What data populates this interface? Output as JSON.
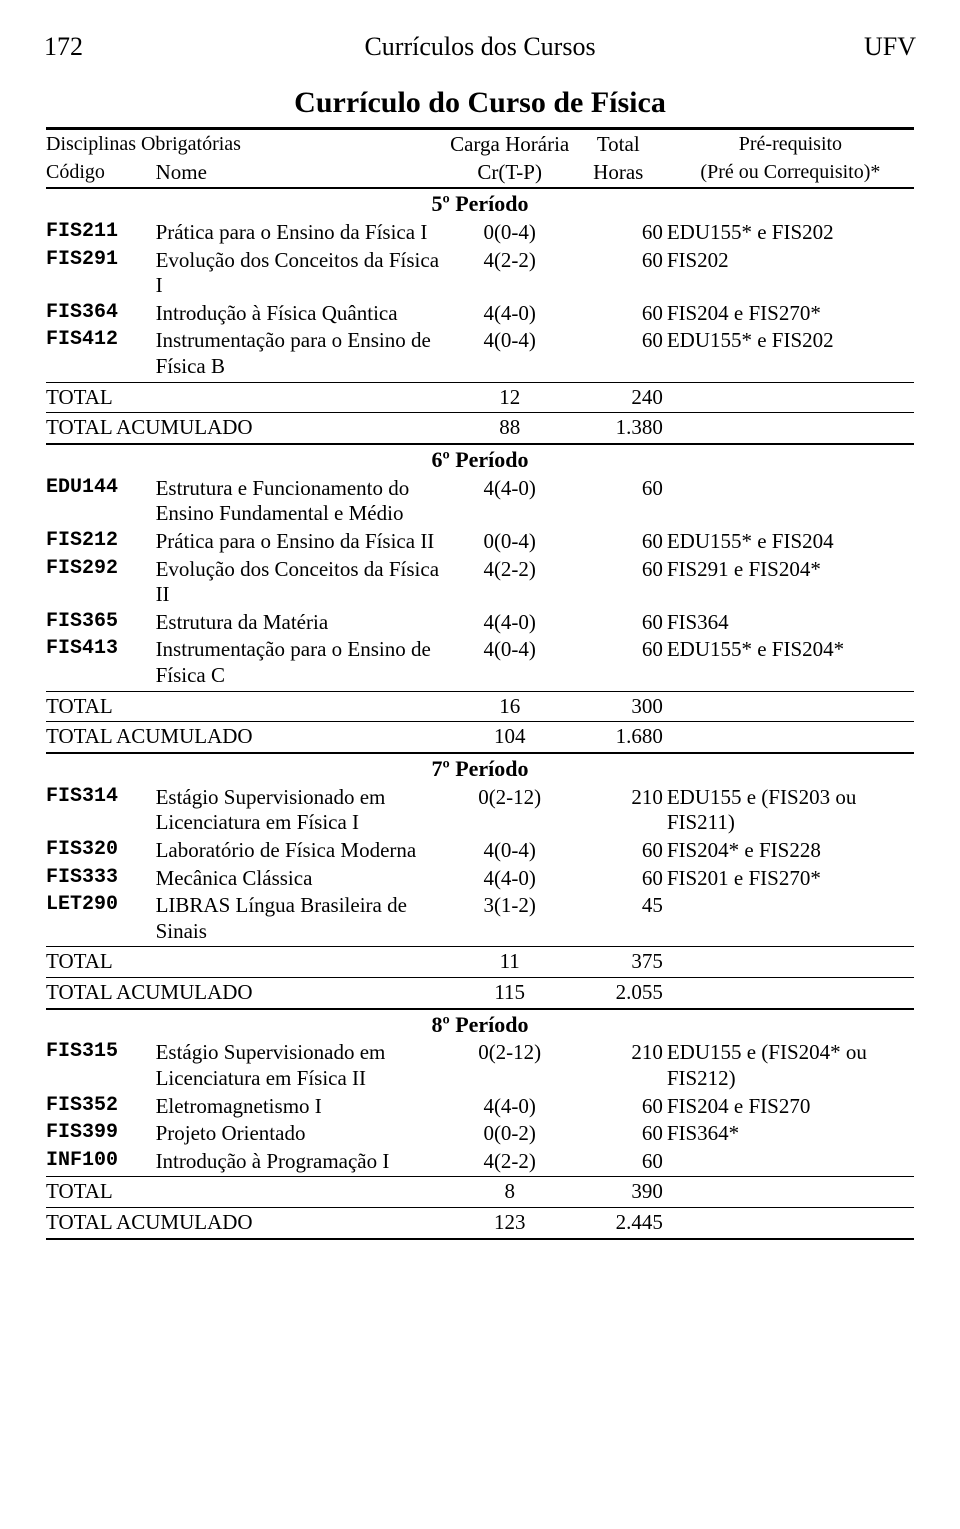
{
  "header": {
    "page_number": "172",
    "center_title": "Currículos dos Cursos",
    "institution": "UFV"
  },
  "title": "Currículo do Curso de Física",
  "table_header": {
    "row1": {
      "disciplinas": "Disciplinas Obrigatórias",
      "carga": "Carga Horária",
      "total": "Total",
      "prereq": "Pré-requisito"
    },
    "row2": {
      "codigo": "Código",
      "nome": "Nome",
      "carga": "Cr(T-P)",
      "horas": "Horas",
      "prereq": "(Pré ou Correquisito)*"
    }
  },
  "periods": [
    {
      "label": "5º Período",
      "rows": [
        {
          "code": "FIS211",
          "nome": "Prática para o Ensino da Física I",
          "carga": "0(0-4)",
          "horas": "60",
          "prereq": "EDU155* e FIS202"
        },
        {
          "code": "FIS291",
          "nome": "Evolução dos Conceitos da Física I",
          "carga": "4(2-2)",
          "horas": "60",
          "prereq": "FIS202"
        },
        {
          "code": "FIS364",
          "nome": "Introdução à Física Quântica",
          "carga": "4(4-0)",
          "horas": "60",
          "prereq": "FIS204 e FIS270*"
        },
        {
          "code": "FIS412",
          "nome": "Instrumentação para o Ensino de Física B",
          "carga": "4(0-4)",
          "horas": "60",
          "prereq": "EDU155* e FIS202"
        }
      ],
      "total": {
        "label": "TOTAL",
        "carga": "12",
        "horas": "240"
      },
      "acumulado": {
        "label": "TOTAL ACUMULADO",
        "carga": "88",
        "horas": "1.380"
      }
    },
    {
      "label": "6º Período",
      "rows": [
        {
          "code": "EDU144",
          "nome": "Estrutura e Funcionamento do Ensino Fundamental e Médio",
          "carga": "4(4-0)",
          "horas": "60",
          "prereq": ""
        },
        {
          "code": "FIS212",
          "nome": "Prática para o Ensino da Física II",
          "carga": "0(0-4)",
          "horas": "60",
          "prereq": "EDU155* e FIS204"
        },
        {
          "code": "FIS292",
          "nome": "Evolução dos Conceitos da Física II",
          "carga": "4(2-2)",
          "horas": "60",
          "prereq": "FIS291 e FIS204*"
        },
        {
          "code": "FIS365",
          "nome": "Estrutura da Matéria",
          "carga": "4(4-0)",
          "horas": "60",
          "prereq": "FIS364"
        },
        {
          "code": "FIS413",
          "nome": "Instrumentação para o Ensino de Física C",
          "carga": "4(0-4)",
          "horas": "60",
          "prereq": "EDU155* e FIS204*"
        }
      ],
      "total": {
        "label": "TOTAL",
        "carga": "16",
        "horas": "300"
      },
      "acumulado": {
        "label": "TOTAL ACUMULADO",
        "carga": "104",
        "horas": "1.680"
      }
    },
    {
      "label": "7º Período",
      "rows": [
        {
          "code": "FIS314",
          "nome": "Estágio Supervisionado em Licenciatura em Física I",
          "carga": "0(2-12)",
          "horas": "210",
          "prereq": "EDU155 e (FIS203 ou FIS211)"
        },
        {
          "code": "FIS320",
          "nome": "Laboratório de Física Moderna",
          "carga": "4(0-4)",
          "horas": "60",
          "prereq": "FIS204* e FIS228"
        },
        {
          "code": "FIS333",
          "nome": "Mecânica Clássica",
          "carga": "4(4-0)",
          "horas": "60",
          "prereq": "FIS201 e FIS270*"
        },
        {
          "code": "LET290",
          "nome": "LIBRAS Língua Brasileira de Sinais",
          "carga": "3(1-2)",
          "horas": "45",
          "prereq": ""
        }
      ],
      "total": {
        "label": "TOTAL",
        "carga": "11",
        "horas": "375"
      },
      "acumulado": {
        "label": "TOTAL ACUMULADO",
        "carga": "115",
        "horas": "2.055"
      }
    },
    {
      "label": "8º Período",
      "rows": [
        {
          "code": "FIS315",
          "nome": "Estágio Supervisionado em Licenciatura em Física II",
          "carga": "0(2-12)",
          "horas": "210",
          "prereq": "EDU155 e (FIS204* ou FIS212)"
        },
        {
          "code": "FIS352",
          "nome": "Eletromagnetismo I",
          "carga": "4(4-0)",
          "horas": "60",
          "prereq": "FIS204 e FIS270"
        },
        {
          "code": "FIS399",
          "nome": "Projeto Orientado",
          "carga": "0(0-2)",
          "horas": "60",
          "prereq": "FIS364*"
        },
        {
          "code": "INF100",
          "nome": "Introdução à Programação I",
          "carga": "4(2-2)",
          "horas": "60",
          "prereq": ""
        }
      ],
      "total": {
        "label": "TOTAL",
        "carga": "8",
        "horas": "390"
      },
      "acumulado": {
        "label": "TOTAL ACUMULADO",
        "carga": "123",
        "horas": "2.445"
      }
    }
  ]
}
